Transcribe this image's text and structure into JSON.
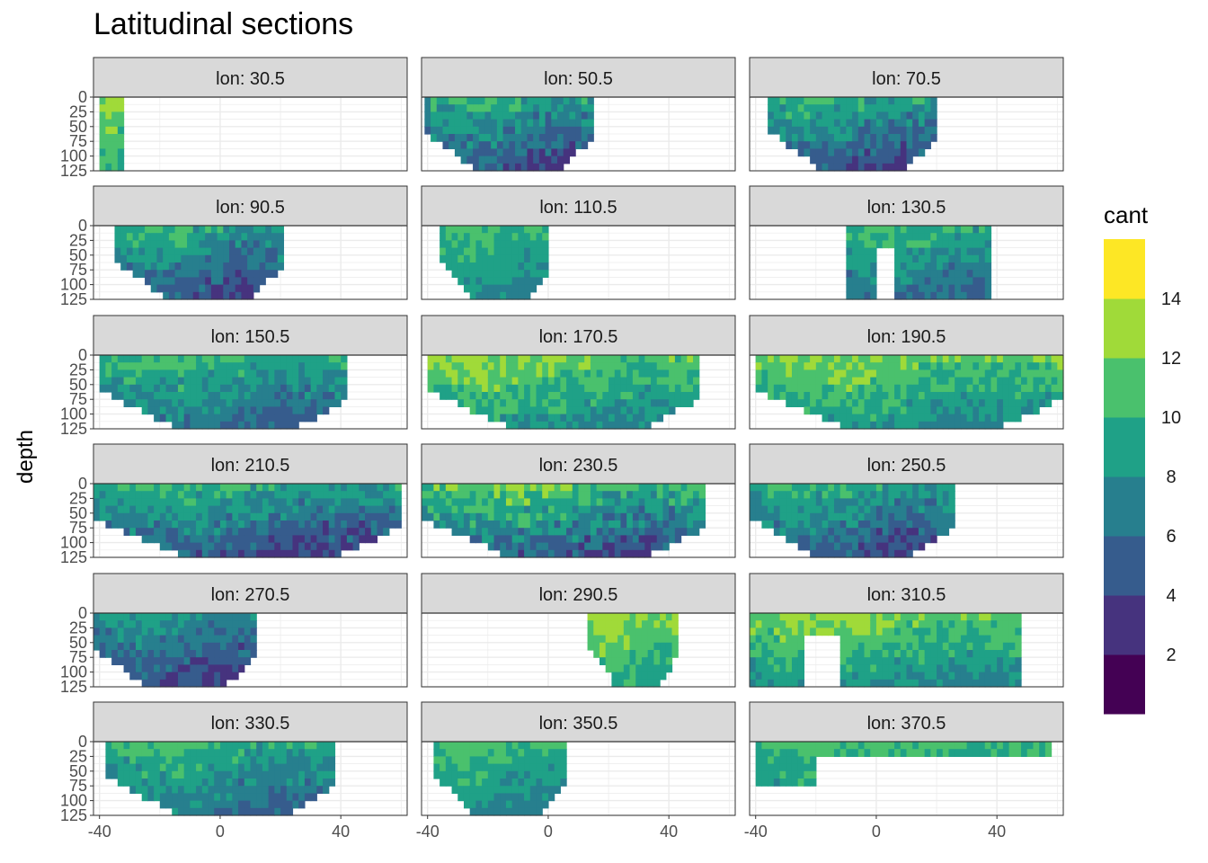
{
  "chart_data": {
    "type": "filled-contour-facets",
    "title": "Latitudinal sections",
    "xlabel": "",
    "ylabel": "depth",
    "x_ticks": [
      -40,
      0,
      40
    ],
    "y_ticks": [
      0,
      25,
      50,
      75,
      100,
      125
    ],
    "xlim": [
      -42,
      62
    ],
    "ylim": [
      125,
      0
    ],
    "legend": {
      "title": "cant",
      "position": "right",
      "breaks": [
        2,
        4,
        6,
        8,
        10,
        12,
        14
      ],
      "bins": [
        {
          "from": 0,
          "to": 2,
          "color": "#440154"
        },
        {
          "from": 2,
          "to": 4,
          "color": "#46337E"
        },
        {
          "from": 4,
          "to": 6,
          "color": "#365C8D"
        },
        {
          "from": 6,
          "to": 8,
          "color": "#277F8E"
        },
        {
          "from": 8,
          "to": 10,
          "color": "#1FA187"
        },
        {
          "from": 10,
          "to": 12,
          "color": "#4AC16D"
        },
        {
          "from": 12,
          "to": 14,
          "color": "#A0DA39"
        },
        {
          "from": 14,
          "to": 16,
          "color": "#FDE725"
        }
      ]
    },
    "panels": [
      {
        "label": "lon: 30.5",
        "lat_range": [
          -40,
          -32
        ],
        "profile": "narrow",
        "cant_range": [
          8,
          14
        ]
      },
      {
        "label": "lon: 50.5",
        "lat_range": [
          -41,
          14
        ],
        "profile": "wedge",
        "cant_range": [
          2,
          12
        ]
      },
      {
        "label": "lon: 70.5",
        "lat_range": [
          -36,
          20
        ],
        "profile": "wedge",
        "cant_range": [
          2,
          12
        ]
      },
      {
        "label": "lon: 90.5",
        "lat_range": [
          -35,
          20
        ],
        "profile": "wedge",
        "cant_range": [
          2,
          12
        ]
      },
      {
        "label": "lon: 110.5",
        "lat_range": [
          -36,
          0
        ],
        "profile": "wedge",
        "cant_range": [
          6,
          12
        ]
      },
      {
        "label": "lon: 130.5",
        "lat_range": [
          -10,
          38
        ],
        "profile": "split",
        "cant_range": [
          4,
          12
        ]
      },
      {
        "label": "lon: 150.5",
        "lat_range": [
          -40,
          42
        ],
        "profile": "wedge",
        "cant_range": [
          4,
          12
        ]
      },
      {
        "label": "lon: 170.5",
        "lat_range": [
          -40,
          50
        ],
        "profile": "wedge",
        "cant_range": [
          6,
          14
        ]
      },
      {
        "label": "lon: 190.5",
        "lat_range": [
          -40,
          62
        ],
        "profile": "wedge",
        "cant_range": [
          6,
          14
        ]
      },
      {
        "label": "lon: 210.5",
        "lat_range": [
          -42,
          60
        ],
        "profile": "wedge",
        "cant_range": [
          2,
          12
        ]
      },
      {
        "label": "lon: 230.5",
        "lat_range": [
          -42,
          52
        ],
        "profile": "wedge",
        "cant_range": [
          2,
          14
        ]
      },
      {
        "label": "lon: 250.5",
        "lat_range": [
          -42,
          25
        ],
        "profile": "wedge",
        "cant_range": [
          2,
          12
        ]
      },
      {
        "label": "lon: 270.5",
        "lat_range": [
          -42,
          12
        ],
        "profile": "wedge",
        "cant_range": [
          2,
          10
        ]
      },
      {
        "label": "lon: 290.5",
        "lat_range": [
          13,
          42
        ],
        "profile": "wedge",
        "cant_range": [
          8,
          14
        ]
      },
      {
        "label": "lon: 310.5",
        "lat_range": [
          -42,
          48
        ],
        "profile": "split",
        "cant_range": [
          6,
          14
        ]
      },
      {
        "label": "lon: 330.5",
        "lat_range": [
          -38,
          38
        ],
        "profile": "wedge",
        "cant_range": [
          4,
          12
        ]
      },
      {
        "label": "lon: 350.5",
        "lat_range": [
          -38,
          5
        ],
        "profile": "wedge",
        "cant_range": [
          6,
          12
        ]
      },
      {
        "label": "lon: 370.5",
        "lat_range": [
          -40,
          58
        ],
        "profile": "shallow",
        "cant_range": [
          6,
          12
        ]
      }
    ]
  }
}
